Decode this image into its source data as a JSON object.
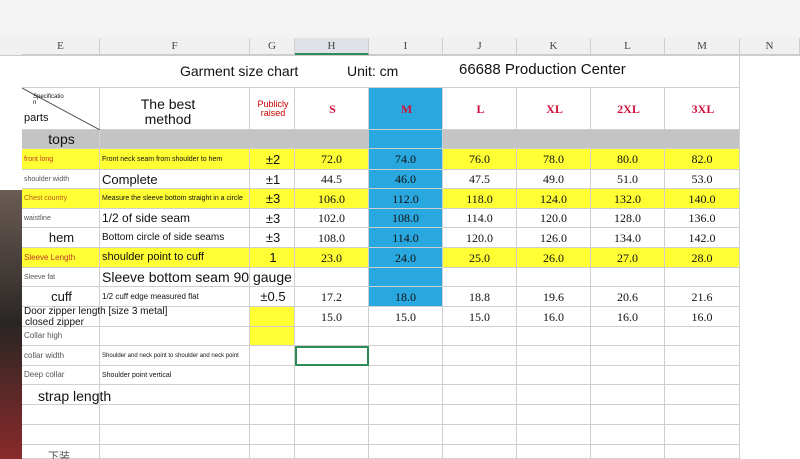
{
  "column_letters": [
    "E",
    "F",
    "G",
    "H",
    "I",
    "J",
    "K",
    "L",
    "M",
    "N"
  ],
  "title": {
    "left": "Garment size chart",
    "unit": "Unit: cm",
    "center": "66688 Production Center"
  },
  "header": {
    "spec": "Specificatio n",
    "parts": "parts",
    "method": "The best method",
    "tolerance": "Publicly raised",
    "sizes": [
      "S",
      "M",
      "L",
      "XL",
      "2XL",
      "3XL"
    ]
  },
  "section": "tops",
  "rows": [
    {
      "part": "front long",
      "method": "Front neck seam from shoulder to hem",
      "tolerance": "±2",
      "sizes": [
        "72.0",
        "74.0",
        "76.0",
        "78.0",
        "80.0",
        "82.0"
      ],
      "fill": "#ffff33"
    },
    {
      "part": "shoulder width",
      "method": "Complete",
      "tolerance": "±1",
      "sizes": [
        "44.5",
        "46.0",
        "47.5",
        "49.0",
        "51.0",
        "53.0"
      ]
    },
    {
      "part": "Chest country",
      "method": "Measure the sleeve bottom straight in a circle",
      "tolerance": "±3",
      "sizes": [
        "106.0",
        "112.0",
        "118.0",
        "124.0",
        "132.0",
        "140.0"
      ],
      "fill": "#ffff33"
    },
    {
      "part": "waistline",
      "method": "1/2 of side seam",
      "tolerance": "±3",
      "sizes": [
        "102.0",
        "108.0",
        "114.0",
        "120.0",
        "128.0",
        "136.0"
      ]
    },
    {
      "part": "hem",
      "method": "Bottom circle of side seams",
      "tolerance": "±3",
      "sizes": [
        "108.0",
        "114.0",
        "120.0",
        "126.0",
        "134.0",
        "142.0"
      ]
    },
    {
      "part": "Sleeve Length",
      "method": "shoulder point to cuff",
      "tolerance": "1",
      "sizes": [
        "23.0",
        "24.0",
        "25.0",
        "26.0",
        "27.0",
        "28.0"
      ],
      "fill": "#ffff33"
    },
    {
      "part": "Sleeve fat",
      "method": "Sleeve bottom seam 90 gauge"
    },
    {
      "part": "cuff",
      "method": "1/2 cuff edge measured flat",
      "tolerance": "±0.5",
      "sizes": [
        "17.2",
        "18.0",
        "18.8",
        "19.6",
        "20.6",
        "21.6"
      ]
    },
    {
      "part": "Door zipper length [size 3 metal]",
      "sizes": [
        "15.0",
        "15.0",
        "15.0",
        "16.0",
        "16.0",
        "16.0"
      ]
    },
    {
      "part": "Collar high"
    },
    {
      "part": "collar width",
      "method": "Shoulder and neck point to shoulder and neck point"
    },
    {
      "part": "Deep collar",
      "method": "Shoulder point vertical"
    }
  ],
  "door_zipper_note": "closed zipper",
  "strap_row": "strap length",
  "bottoms": "下装"
}
